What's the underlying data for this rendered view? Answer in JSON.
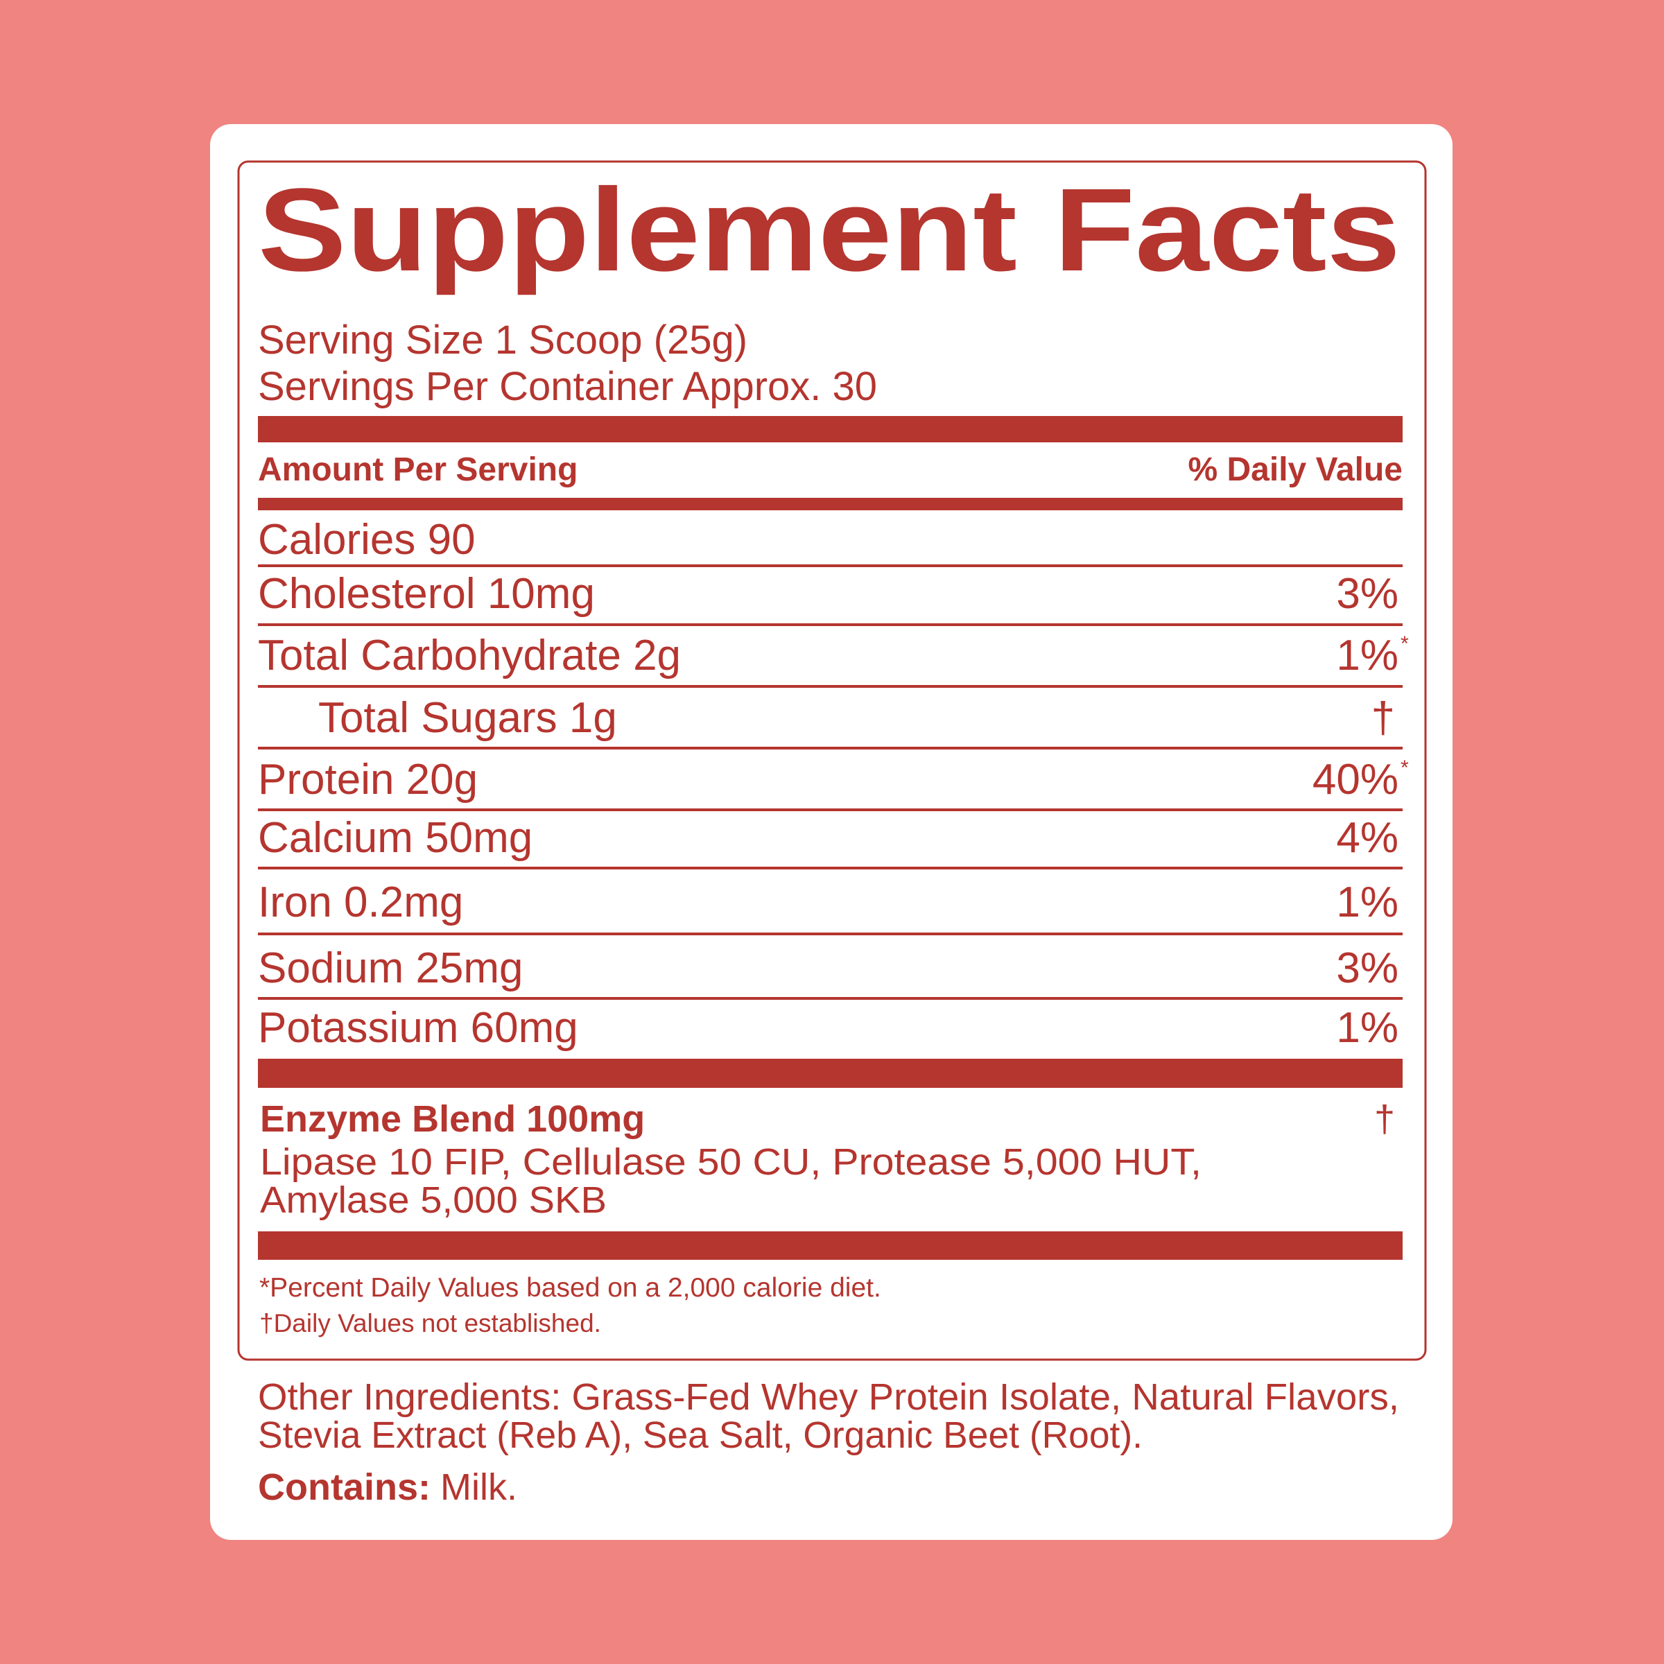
{
  "header": {
    "title": "Supplement Facts",
    "serving_size": "Serving Size 1 Scoop (25g)",
    "servings_per_container": "Servings Per Container Approx. 30"
  },
  "table": {
    "column_headers": [
      "Amount Per Serving",
      "% Daily Value"
    ],
    "rows": [
      {
        "label": "Calories 90"
      },
      {
        "label": "Cholesterol 10mg",
        "dv": "3%"
      },
      {
        "label": "Total Carbohydrate 2g",
        "dv": "1%",
        "note": "*"
      },
      {
        "label": "Total Sugars 1g",
        "dv": "†",
        "indent": true
      },
      {
        "label": "Protein 20g",
        "dv": "40%",
        "note": "*"
      },
      {
        "label": "Calcium 50mg",
        "dv": "4%"
      },
      {
        "label": "Iron 0.2mg",
        "dv": "1%"
      },
      {
        "label": "Sodium 25mg",
        "dv": "3%"
      },
      {
        "label": "Potassium 60mg",
        "dv": "1%"
      }
    ]
  },
  "blend": {
    "name": "Enzyme Blend 100mg",
    "dv": "†",
    "ingredients": [
      "Lipase 10 FIP, Cellulase 50 CU, Protease 5,000 HUT,",
      "Amylase 5,000 SKB"
    ]
  },
  "footnotes": [
    "*Percent Daily Values based on a 2,000 calorie diet.",
    "†Daily Values not established."
  ],
  "other_ingredients": [
    "Other Ingredients: Grass-Fed Whey Protein Isolate, Natural Flavors,",
    "Stevia Extract (Reb A), Sea Salt, Organic Beet (Root)."
  ],
  "contains": {
    "label": "Contains:",
    "value": "Milk."
  }
}
